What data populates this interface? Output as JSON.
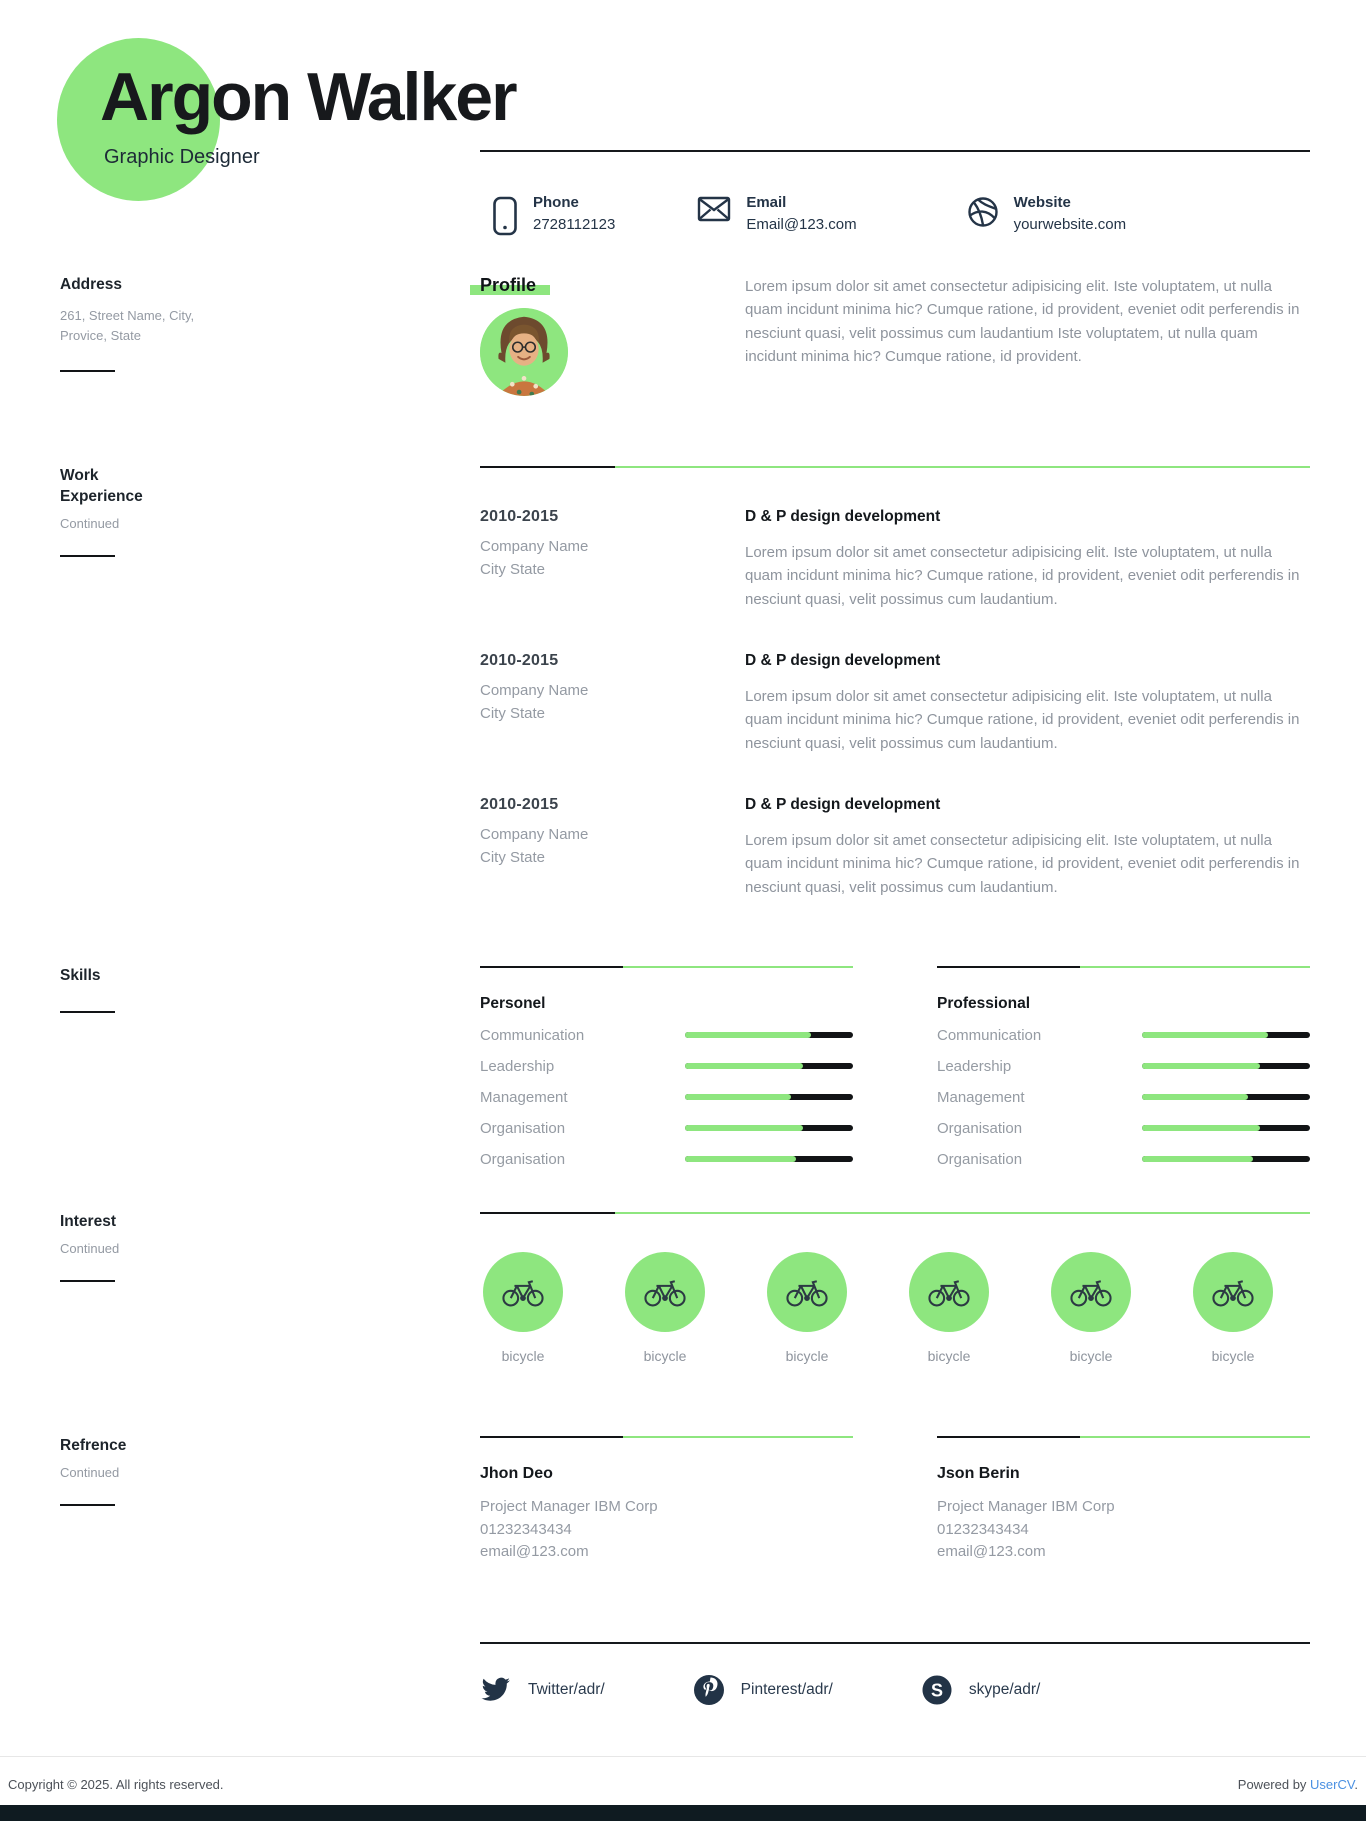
{
  "colors": {
    "accent": "#8ee67f",
    "ink": "#17191c",
    "navy": "#243447",
    "muted": "#949aa3",
    "link": "#4a90e2",
    "strip": "#0f1b21"
  },
  "header": {
    "name": "Argon Walker",
    "title": "Graphic Designer"
  },
  "contact": {
    "items": [
      {
        "icon": "phone-icon",
        "label": "Phone",
        "value": "2728112123"
      },
      {
        "icon": "email-icon",
        "label": "Email",
        "value": "Email@123.com"
      },
      {
        "icon": "website-icon",
        "label": "Website",
        "value": "yourwebsite.com"
      }
    ]
  },
  "sidebar": {
    "address": {
      "title": "Address",
      "line1": "261, Street Name, City,",
      "line2": "Provice, State"
    },
    "work": {
      "title_line1": "Work",
      "title_line2": "Experience",
      "continued": "Continued"
    },
    "skills": {
      "title": "Skills"
    },
    "interest": {
      "title": "Interest",
      "continued": "Continued"
    },
    "reference": {
      "title": "Refrence",
      "continued": "Continued"
    }
  },
  "profile": {
    "heading": "Profile",
    "text": "Lorem ipsum dolor sit amet consectetur adipisicing elit. Iste voluptatem, ut nulla quam incidunt minima hic? Cumque ratione, id provident, eveniet odit perferendis in nesciunt quasi, velit possimus cum laudantium Iste voluptatem, ut nulla quam incidunt minima hic? Cumque ratione, id provident."
  },
  "work": {
    "entries": [
      {
        "period": "2010-2015",
        "company": "Company Name",
        "location": "City State",
        "title": "D & P design development",
        "description": "Lorem ipsum dolor sit amet consectetur adipisicing elit. Iste voluptatem, ut nulla quam incidunt minima hic? Cumque ratione, id provident, eveniet odit perferendis in nesciunt quasi, velit possimus cum laudantium."
      },
      {
        "period": "2010-2015",
        "company": "Company Name",
        "location": "City State",
        "title": "D & P design development",
        "description": "Lorem ipsum dolor sit amet consectetur adipisicing elit. Iste voluptatem, ut nulla quam incidunt minima hic? Cumque ratione, id provident, eveniet odit perferendis in nesciunt quasi, velit possimus cum laudantium."
      },
      {
        "period": "2010-2015",
        "company": "Company Name",
        "location": "City State",
        "title": "D & P design development",
        "description": "Lorem ipsum dolor sit amet consectetur adipisicing elit. Iste voluptatem, ut nulla quam incidunt minima hic? Cumque ratione, id provident, eveniet odit perferendis in nesciunt quasi, velit possimus cum laudantium."
      }
    ]
  },
  "skills": {
    "columns": [
      {
        "heading": "Personel",
        "items": [
          {
            "label": "Communication",
            "value": 75
          },
          {
            "label": "Leadership",
            "value": 70
          },
          {
            "label": "Management",
            "value": 63
          },
          {
            "label": "Organisation",
            "value": 70
          },
          {
            "label": "Organisation",
            "value": 66
          }
        ]
      },
      {
        "heading": "Professional",
        "items": [
          {
            "label": "Communication",
            "value": 75
          },
          {
            "label": "Leadership",
            "value": 70
          },
          {
            "label": "Management",
            "value": 63
          },
          {
            "label": "Organisation",
            "value": 70
          },
          {
            "label": "Organisation",
            "value": 66
          }
        ]
      }
    ]
  },
  "interest": {
    "items": [
      {
        "icon": "bicycle-icon",
        "label": "bicycle"
      },
      {
        "icon": "bicycle-icon",
        "label": "bicycle"
      },
      {
        "icon": "bicycle-icon",
        "label": "bicycle"
      },
      {
        "icon": "bicycle-icon",
        "label": "bicycle"
      },
      {
        "icon": "bicycle-icon",
        "label": "bicycle"
      },
      {
        "icon": "bicycle-icon",
        "label": "bicycle"
      }
    ]
  },
  "references": {
    "entries": [
      {
        "name": "Jhon Deo",
        "role": "Project Manager IBM Corp",
        "phone": "01232343434",
        "email": "email@123.com"
      },
      {
        "name": "Json Berin",
        "role": "Project Manager IBM Corp",
        "phone": "01232343434",
        "email": "email@123.com"
      }
    ]
  },
  "social": {
    "items": [
      {
        "icon": "twitter-icon",
        "label": "Twitter/adr/"
      },
      {
        "icon": "pinterest-icon",
        "label": "Pinterest/adr/"
      },
      {
        "icon": "skype-icon",
        "label": "skype/adr/"
      }
    ]
  },
  "footer": {
    "copyright": "Copyright © 2025. All rights reserved.",
    "powered_prefix": "Powered by ",
    "powered_link": "UserCV",
    "powered_suffix": "."
  }
}
